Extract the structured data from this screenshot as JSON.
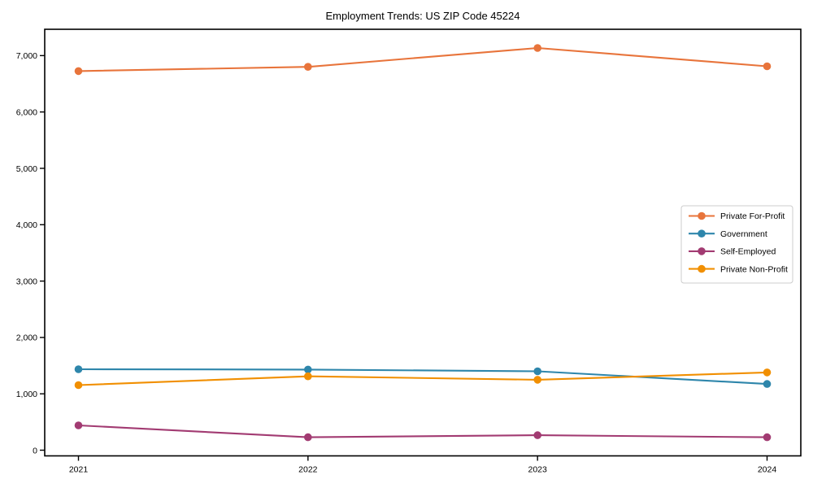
{
  "chart_data": {
    "type": "line",
    "title": "Employment Trends: US ZIP Code 45224",
    "categories": [
      "2021",
      "2022",
      "2023",
      "2024"
    ],
    "series": [
      {
        "name": "Private For-Profit",
        "color": "#E8743B",
        "values": [
          6725,
          6800,
          7135,
          6810
        ]
      },
      {
        "name": "Government",
        "color": "#2E86AB",
        "values": [
          1435,
          1430,
          1400,
          1175
        ]
      },
      {
        "name": "Self-Employed",
        "color": "#A23B72",
        "values": [
          440,
          230,
          265,
          230
        ]
      },
      {
        "name": "Private Non-Profit",
        "color": "#F18F01",
        "values": [
          1155,
          1310,
          1250,
          1380
        ]
      }
    ],
    "y_ticks": [
      {
        "value": 0,
        "label": "0"
      },
      {
        "value": 1000,
        "label": "1,000"
      },
      {
        "value": 2000,
        "label": "2,000"
      },
      {
        "value": 3000,
        "label": "3,000"
      },
      {
        "value": 4000,
        "label": "4,000"
      },
      {
        "value": 5000,
        "label": "5,000"
      },
      {
        "value": 6000,
        "label": "6,000"
      },
      {
        "value": 7000,
        "label": "7,000"
      }
    ],
    "ylim": [
      -101,
      7467
    ],
    "xlabel": "",
    "ylabel": "",
    "grid": false,
    "legend_position": "right-center",
    "axis_color": "#000000",
    "tick_label_color": "#000000",
    "background": "#FFFFFF",
    "legend_border_color": "#CCCCCC",
    "legend_background": "#FFFFFF"
  }
}
